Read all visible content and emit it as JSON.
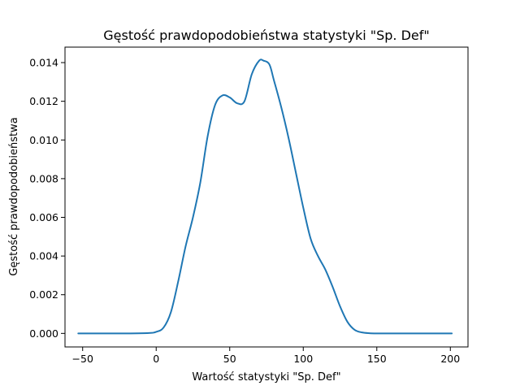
{
  "chart_data": {
    "type": "line",
    "title": "Gęstość prawdopodobieństwa statystyki \"Sp. Def\"",
    "xlabel": "Wartość statystyki \"Sp. Def\"",
    "ylabel": "Gęstość prawdopodobieństwa",
    "xlim": [
      -62,
      212
    ],
    "ylim": [
      -0.0007,
      0.0148
    ],
    "xticks": [
      -50,
      0,
      50,
      100,
      150,
      200
    ],
    "xtick_labels": [
      "−50",
      "0",
      "50",
      "100",
      "150",
      "200"
    ],
    "yticks": [
      0.0,
      0.002,
      0.004,
      0.006,
      0.008,
      0.01,
      0.012,
      0.014
    ],
    "ytick_labels": [
      "0.000",
      "0.002",
      "0.004",
      "0.006",
      "0.008",
      "0.010",
      "0.012",
      "0.014"
    ],
    "grid": false,
    "series": [
      {
        "color": "#1f77b4",
        "x": [
          -53,
          -20,
          -5,
          0,
          5,
          10,
          15,
          20,
          25,
          30,
          35,
          40,
          45,
          50,
          55,
          60,
          65,
          70,
          73,
          77,
          80,
          85,
          90,
          95,
          100,
          105,
          110,
          115,
          120,
          125,
          130,
          135,
          140,
          145,
          150,
          160,
          180,
          201
        ],
        "y": [
          0.0,
          0.0,
          2e-05,
          8e-05,
          0.0003,
          0.0011,
          0.0027,
          0.0045,
          0.006,
          0.0078,
          0.0102,
          0.0118,
          0.0123,
          0.0122,
          0.0119,
          0.012,
          0.0134,
          0.0141,
          0.0141,
          0.0139,
          0.0131,
          0.0117,
          0.0101,
          0.0083,
          0.0065,
          0.0049,
          0.004,
          0.0033,
          0.0024,
          0.0014,
          0.0006,
          0.00018,
          5e-05,
          1e-05,
          0.0,
          0.0,
          0.0,
          0.0
        ]
      }
    ]
  }
}
